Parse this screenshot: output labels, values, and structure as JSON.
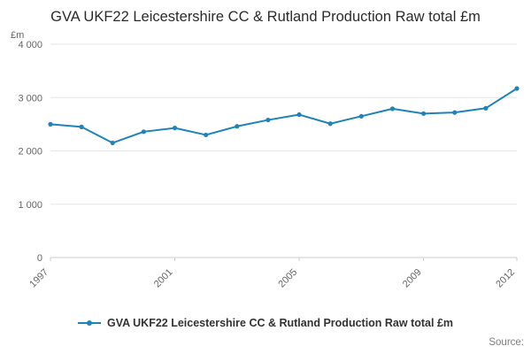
{
  "page": {
    "title": "GVA UKF22 Leicestershire CC & Rutland Production Raw total £m",
    "source_label": "Source:"
  },
  "legend": {
    "label": "GVA UKF22 Leicestershire CC & Rutland Production Raw total £m"
  },
  "chart_data": {
    "type": "line",
    "title": "GVA UKF22 Leicestershire CC & Rutland Production Raw total £m",
    "xlabel": "",
    "ylabel": "£m",
    "x": [
      1997,
      1998,
      1999,
      2000,
      2001,
      2002,
      2003,
      2004,
      2005,
      2006,
      2007,
      2008,
      2009,
      2010,
      2011,
      2012
    ],
    "values": [
      2500,
      2450,
      2150,
      2360,
      2430,
      2300,
      2460,
      2580,
      2680,
      2510,
      2650,
      2790,
      2700,
      2720,
      2800,
      3170
    ],
    "ylim": [
      0,
      4000
    ],
    "y_ticks": [
      0,
      1000,
      2000,
      3000,
      4000
    ],
    "y_tick_labels": [
      "0",
      "1 000",
      "2 000",
      "3 000",
      "4 000"
    ],
    "x_tick_years": [
      1997,
      2001,
      2005,
      2009,
      2012
    ],
    "grid": true,
    "legend_position": "bottom",
    "line_color": "#1f83b9",
    "grid_color": "#e6e6e6",
    "axis_color": "#cccccc",
    "tick_text_color": "#666666"
  }
}
